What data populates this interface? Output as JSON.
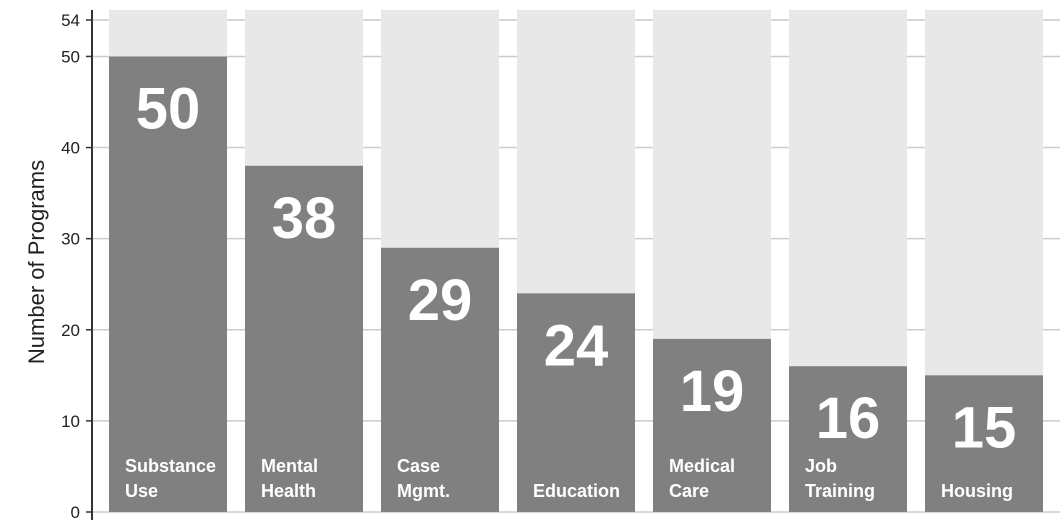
{
  "chart_data": {
    "type": "bar",
    "y_label": "Number of Programs",
    "categories": [
      "Substance Use",
      "Mental Health",
      "Case Mgmt.",
      "Education",
      "Medical Care",
      "Job Training",
      "Housing"
    ],
    "values": [
      50,
      38,
      29,
      24,
      19,
      16,
      15
    ],
    "color": "#808080",
    "background_color": "#e8e8e8",
    "ylim": [
      0,
      54
    ],
    "yticks": [
      0,
      10,
      20,
      30,
      40,
      50,
      54
    ],
    "grid": true
  }
}
